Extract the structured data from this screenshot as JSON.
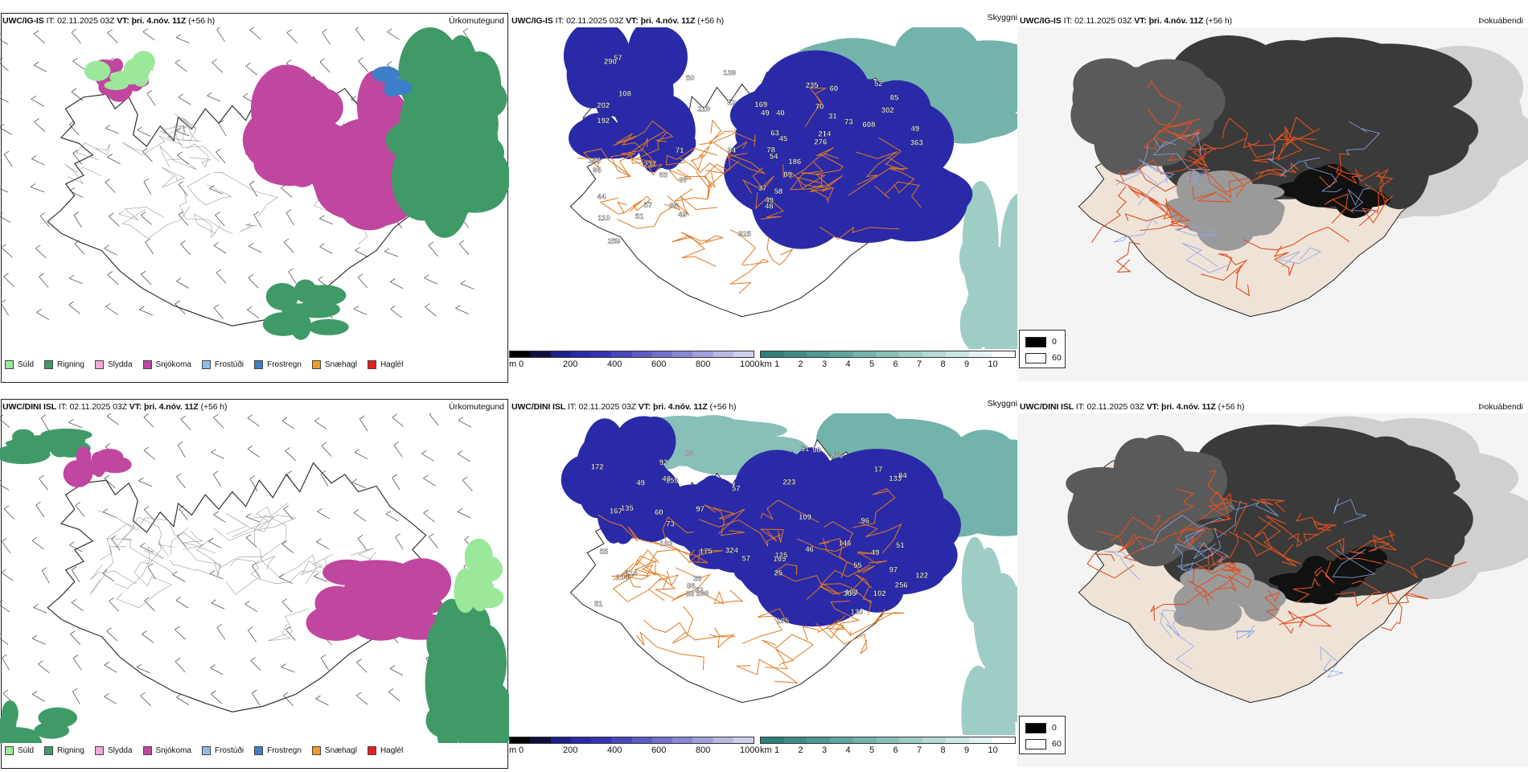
{
  "rows": [
    {
      "precip": {
        "title_model": "UWC/IG-IS",
        "title_it_label": "IT:",
        "title_it_value": "02.11.2025 03Z",
        "title_vt_label": "VT:",
        "title_vt_value": "þri. 4.nóv. 11Z",
        "title_lead": "(+56 h)",
        "corner": "Úrkomutegund"
      },
      "visibility": {
        "title_model": "UWC/IG-IS",
        "title_it_label": "IT:",
        "title_it_value": "02.11.2025 03Z",
        "title_vt_label": "VT:",
        "title_vt_value": "þri. 4.nóv. 11Z",
        "title_lead": "(+56 h)",
        "corner": "Skyggni",
        "labels": [
          "45",
          "52",
          "31",
          "44",
          "50",
          "57",
          "71",
          "49",
          "67",
          "73",
          "63",
          "85",
          "51",
          "89",
          "78",
          "94",
          "148",
          "70",
          "57",
          "60",
          "49",
          "49",
          "108",
          "139",
          "192",
          "237",
          "58",
          "48",
          "229",
          "169",
          "325",
          "363",
          "49",
          "40",
          "37",
          "259",
          "276",
          "290",
          "52",
          "63",
          "54",
          "186",
          "235",
          "202",
          "214",
          "608",
          "98",
          "86",
          "302",
          "110"
        ]
      },
      "fog": {
        "title_model": "UWC/IG-IS",
        "title_it_label": "IT:",
        "title_it_value": "02.11.2025 03Z",
        "title_vt_label": "VT:",
        "title_vt_value": "þri. 4.nóv. 11Z",
        "title_lead": "(+56 h)",
        "corner": "Þokuábendi"
      }
    },
    {
      "precip": {
        "title_model": "UWC/DINI ISL",
        "title_it_label": "IT:",
        "title_it_value": "02.11.2025 03Z",
        "title_vt_label": "VT:",
        "title_vt_value": "þri. 4.nóv. 11Z",
        "title_lead": "(+56 h)",
        "corner": "Úrkomutegund"
      },
      "visibility": {
        "title_model": "UWC/DINI ISL",
        "title_it_label": "IT:",
        "title_it_value": "02.11.2025 03Z",
        "title_vt_label": "VT:",
        "title_vt_value": "þri. 4.nóv. 11Z",
        "title_lead": "(+56 h)",
        "corner": "Skyggni",
        "labels": [
          "133",
          "135",
          "33",
          "51",
          "49",
          "25",
          "51",
          "46",
          "57",
          "97",
          "105",
          "90",
          "96",
          "88",
          "51",
          "60",
          "57",
          "49",
          "52",
          "55",
          "55",
          "108",
          "73",
          "109",
          "104",
          "43",
          "97",
          "102",
          "146",
          "130",
          "86",
          "122",
          "167",
          "256",
          "159",
          "175",
          "206",
          "305",
          "324",
          "223",
          "172",
          "165",
          "92",
          "86",
          "276",
          "17",
          "125",
          "84",
          "414",
          "103"
        ]
      },
      "fog": {
        "title_model": "UWC/DINI ISL",
        "title_it_label": "IT:",
        "title_it_value": "02.11.2025 03Z",
        "title_vt_label": "VT:",
        "title_vt_value": "þri. 4.nóv. 11Z",
        "title_lead": "(+56 h)",
        "corner": "Þokuábendi"
      }
    }
  ],
  "precip_legend": [
    {
      "label": "Súld",
      "color": "#9be89b"
    },
    {
      "label": "Rigning",
      "color": "#3f9a67"
    },
    {
      "label": "Slydda",
      "color": "#f0a8d8"
    },
    {
      "label": "Snjókoma",
      "color": "#c0479f"
    },
    {
      "label": "Frostúði",
      "color": "#8fbde8"
    },
    {
      "label": "Frostregn",
      "color": "#3d7fc8"
    },
    {
      "label": "Snæhagl",
      "color": "#f39a2a"
    },
    {
      "label": "Haglél",
      "color": "#e02020"
    }
  ],
  "ceiling_bar": {
    "unit": "m",
    "ticks": [
      "0",
      "200",
      "400",
      "600",
      "800",
      "1000"
    ],
    "colors": [
      "#000000",
      "#101040",
      "#1e1e8c",
      "#2a2aa8",
      "#3434b4",
      "#4848bc",
      "#5c5cc4",
      "#7070cc",
      "#8888d4",
      "#a0a0dc",
      "#b8b8e4",
      "#d0d0ec"
    ]
  },
  "vis_bar": {
    "unit": "km",
    "ticks": [
      "1",
      "2",
      "3",
      "4",
      "5",
      "6",
      "7",
      "8",
      "9",
      "10"
    ],
    "colors": [
      "#2f7f7a",
      "#3f8c86",
      "#4f9992",
      "#5fa69e",
      "#73b3ab",
      "#88c0b8",
      "#9ecdc6",
      "#b4dad4",
      "#cae7e2",
      "#e2f3f1",
      "#ffffff"
    ]
  },
  "fog_legend": [
    {
      "label": "0",
      "color": "#000000"
    },
    {
      "label": "60",
      "color": "#ffffff"
    }
  ]
}
